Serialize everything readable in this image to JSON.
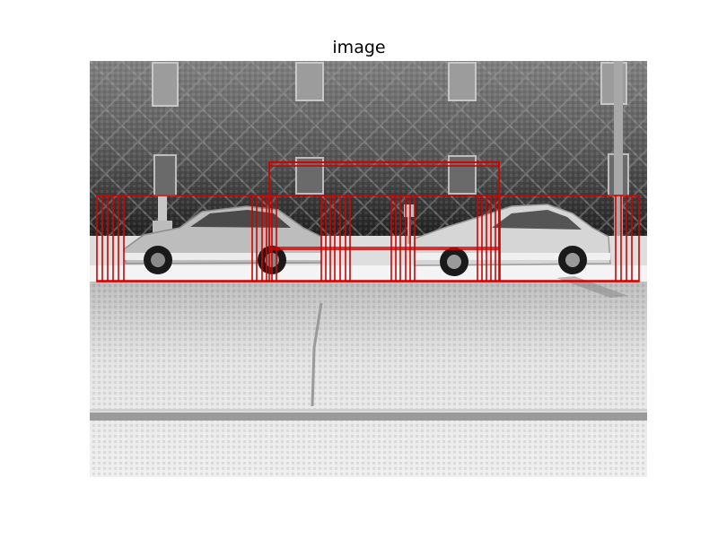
{
  "figure": {
    "title": "image"
  },
  "image": {
    "description_colors": {
      "wall_top": "#7a7a7a",
      "wall_bottom": "#2f2f2f",
      "road": "#d8d8d8",
      "curb": "#f2f2f2",
      "box": "#d40000"
    }
  }
}
